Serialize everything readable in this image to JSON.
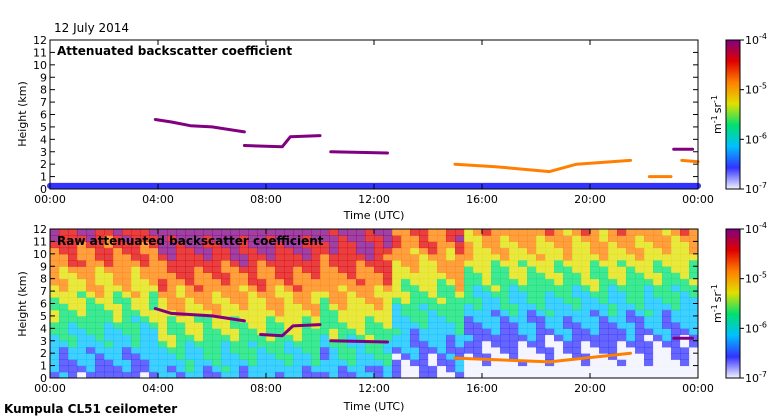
{
  "page": {
    "date": "12 July 2014",
    "footer": "Kumpula CL51 ceilometer"
  },
  "colorscale": {
    "stops": [
      "#f2f2ff",
      "#3333ff",
      "#00c0ff",
      "#00e070",
      "#e0e000",
      "#ff8000",
      "#e00000",
      "#800080"
    ],
    "tick_labels": [
      "10",
      "10",
      "10",
      "10"
    ],
    "tick_exponents": [
      "-4",
      "-5",
      "-6",
      "-7"
    ],
    "unit": "m",
    "unit_exp1": "-1",
    "unit_sr": "sr",
    "unit_exp2": "-1"
  },
  "chart_data": [
    {
      "type": "heatmap",
      "title": "Attenuated backscatter coefficient",
      "xlabel": "Time (UTC)",
      "ylabel": "Height (km)",
      "x_ticks": [
        "00:00",
        "04:00",
        "08:00",
        "12:00",
        "16:00",
        "20:00",
        "00:00"
      ],
      "y_ticks": [
        "0",
        "1",
        "2",
        "3",
        "4",
        "5",
        "6",
        "7",
        "8",
        "9",
        "10",
        "11",
        "12"
      ],
      "xlim_hours": [
        0,
        24
      ],
      "ylim_km": [
        0,
        12
      ],
      "color_scale": "log",
      "clim": [
        "1e-7",
        "1e-4"
      ],
      "background_level": "low",
      "features": [
        {
          "name": "boundary layer",
          "segments": [
            [
              0,
              0.25
            ],
            [
              24,
              0.25
            ]
          ],
          "level": "1e-6.5"
        },
        {
          "name": "cloud layer",
          "segments": [
            [
              3.9,
              5.6
            ],
            [
              4.5,
              5.4
            ],
            [
              5.2,
              5.1
            ],
            [
              6,
              5.0
            ],
            [
              7.2,
              4.6
            ]
          ],
          "level": "1e-4"
        },
        {
          "name": "cloud layer",
          "segments": [
            [
              7.2,
              3.5
            ],
            [
              8.6,
              3.4
            ],
            [
              8.9,
              4.2
            ],
            [
              10,
              4.3
            ]
          ],
          "level": "1e-4"
        },
        {
          "name": "cloud layer",
          "segments": [
            [
              10.4,
              3.0
            ],
            [
              12.5,
              2.9
            ]
          ],
          "level": "1e-4"
        },
        {
          "name": "cloud layer",
          "segments": [
            [
              15,
              2.0
            ],
            [
              16.5,
              1.8
            ],
            [
              18.5,
              1.4
            ],
            [
              19.5,
              2.0
            ],
            [
              21.5,
              2.3
            ]
          ],
          "level": "1e-5"
        },
        {
          "name": "cloud layer",
          "segments": [
            [
              22.2,
              1.0
            ],
            [
              23,
              1.0
            ]
          ],
          "level": "1e-5"
        },
        {
          "name": "cloud layer",
          "segments": [
            [
              23.1,
              3.2
            ],
            [
              23.8,
              3.2
            ]
          ],
          "level": "1e-4"
        },
        {
          "name": "cloud layer",
          "segments": [
            [
              23.4,
              2.3
            ],
            [
              24,
              2.2
            ]
          ],
          "level": "1e-5"
        }
      ]
    },
    {
      "type": "heatmap",
      "title": "Raw attenuated backscatter coefficient",
      "xlabel": "Time (UTC)",
      "ylabel": "Height (km)",
      "x_ticks": [
        "00:00",
        "04:00",
        "08:00",
        "12:00",
        "16:00",
        "20:00",
        "00:00"
      ],
      "y_ticks": [
        "0",
        "1",
        "2",
        "3",
        "4",
        "5",
        "6",
        "7",
        "8",
        "9",
        "10",
        "11",
        "12"
      ],
      "xlim_hours": [
        0,
        24
      ],
      "ylim_km": [
        0,
        12
      ],
      "color_scale": "log",
      "clim": [
        "1e-7",
        "1e-4"
      ],
      "background_level": "noisy, increasing with height (1e-6 near surface to 1e-4 aloft)",
      "features": [
        {
          "name": "cloud layer",
          "segments": [
            [
              3.9,
              5.6
            ],
            [
              4.5,
              5.2
            ],
            [
              6,
              5.0
            ],
            [
              7.2,
              4.6
            ]
          ],
          "level": "1e-4"
        },
        {
          "name": "cloud layer",
          "segments": [
            [
              7.8,
              3.5
            ],
            [
              8.6,
              3.4
            ],
            [
              9,
              4.2
            ],
            [
              10,
              4.3
            ]
          ],
          "level": "1e-4"
        },
        {
          "name": "cloud layer",
          "segments": [
            [
              10.4,
              3.0
            ],
            [
              12.5,
              2.9
            ]
          ],
          "level": "1e-4"
        },
        {
          "name": "cloud layer",
          "segments": [
            [
              15,
              1.6
            ],
            [
              18.5,
              1.3
            ],
            [
              21.5,
              2.0
            ]
          ],
          "level": "1e-5"
        },
        {
          "name": "cloud layer",
          "segments": [
            [
              23.1,
              3.2
            ],
            [
              23.8,
              3.2
            ]
          ],
          "level": "1e-4"
        }
      ]
    }
  ]
}
